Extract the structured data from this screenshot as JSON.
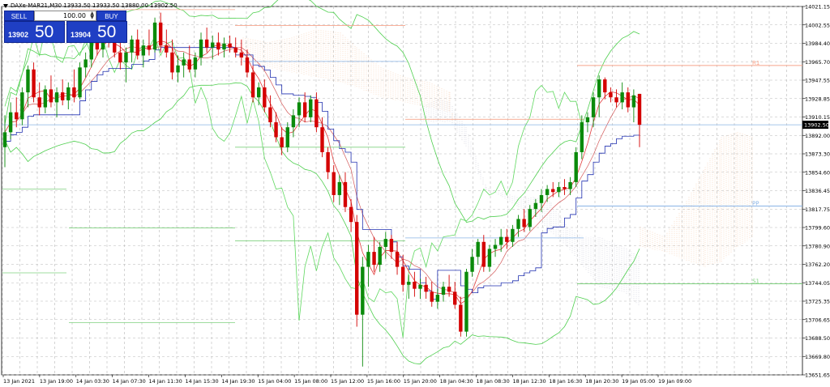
{
  "window": {
    "title": "DAXe-MAR21,M30  13933.50 13933.50 13880.00 13902.50"
  },
  "trade_panel": {
    "sell_label": "SELL",
    "buy_label": "BUY",
    "volume": "100.00",
    "bid_small": "13902",
    "bid_big": "50",
    "ask_small": "13904",
    "ask_big": "50"
  },
  "chart_data": {
    "type": "candlestick",
    "symbol": "DAXe-MAR21",
    "timeframe": "M30",
    "ylim": [
      13651.65,
      14021.15
    ],
    "y_ticks": [
      "14021.15",
      "14002.55",
      "13984.40",
      "13965.70",
      "13947.55",
      "13928.85",
      "13910.15",
      "13892.00",
      "13873.30",
      "13854.60",
      "13836.45",
      "13817.75",
      "13799.60",
      "13780.90",
      "13762.20",
      "13744.05",
      "13725.35",
      "13706.65",
      "13688.50",
      "13669.80",
      "13651.65"
    ],
    "x_ticks": [
      "13 Jan 2021",
      "13 Jan 19:00",
      "14 Jan 03:30",
      "14 Jan 07:30",
      "14 Jan 11:30",
      "14 Jan 15:30",
      "14 Jan 19:30",
      "15 Jan 04:00",
      "15 Jan 08:00",
      "15 Jan 12:00",
      "15 Jan 16:00",
      "15 Jan 20:00",
      "18 Jan 04:30",
      "18 Jan 08:30",
      "18 Jan 12:30",
      "18 Jan 16:30",
      "18 Jan 20:30",
      "19 Jan 05:00",
      "19 Jan 09:00"
    ],
    "current_price": 13902.5,
    "current_price_label": "13902.50",
    "pivots": [
      {
        "name": "R1",
        "value": 13962,
        "color": "#f7a58c"
      },
      {
        "name": "PP",
        "value": 13821,
        "color": "#8ab4e6"
      },
      {
        "name": "S1",
        "value": 13743,
        "color": "#7fd17f"
      }
    ],
    "candles": [
      {
        "o": 13880,
        "h": 13912,
        "l": 13860,
        "c": 13895
      },
      {
        "o": 13895,
        "h": 13925,
        "l": 13888,
        "c": 13915
      },
      {
        "o": 13915,
        "h": 13930,
        "l": 13900,
        "c": 13908
      },
      {
        "o": 13908,
        "h": 13940,
        "l": 13902,
        "c": 13935
      },
      {
        "o": 13935,
        "h": 13962,
        "l": 13920,
        "c": 13958
      },
      {
        "o": 13958,
        "h": 13965,
        "l": 13925,
        "c": 13930
      },
      {
        "o": 13930,
        "h": 13945,
        "l": 13912,
        "c": 13920
      },
      {
        "o": 13920,
        "h": 13942,
        "l": 13914,
        "c": 13938
      },
      {
        "o": 13938,
        "h": 13952,
        "l": 13920,
        "c": 13925
      },
      {
        "o": 13925,
        "h": 13940,
        "l": 13910,
        "c": 13935
      },
      {
        "o": 13935,
        "h": 13948,
        "l": 13922,
        "c": 13927
      },
      {
        "o": 13927,
        "h": 13945,
        "l": 13918,
        "c": 13940
      },
      {
        "o": 13940,
        "h": 13958,
        "l": 13925,
        "c": 13930
      },
      {
        "o": 13930,
        "h": 13965,
        "l": 13928,
        "c": 13960
      },
      {
        "o": 13960,
        "h": 13975,
        "l": 13950,
        "c": 13968
      },
      {
        "o": 13968,
        "h": 13990,
        "l": 13960,
        "c": 13985
      },
      {
        "o": 13985,
        "h": 13995,
        "l": 13972,
        "c": 13978
      },
      {
        "o": 13978,
        "h": 14002,
        "l": 13970,
        "c": 13998
      },
      {
        "o": 13998,
        "h": 14008,
        "l": 13980,
        "c": 13985
      },
      {
        "o": 13985,
        "h": 13998,
        "l": 13970,
        "c": 13975
      },
      {
        "o": 13975,
        "h": 13990,
        "l": 13958,
        "c": 13965
      },
      {
        "o": 13965,
        "h": 13980,
        "l": 13945,
        "c": 13975
      },
      {
        "o": 13975,
        "h": 13992,
        "l": 13965,
        "c": 13988
      },
      {
        "o": 13988,
        "h": 13998,
        "l": 13968,
        "c": 13972
      },
      {
        "o": 13972,
        "h": 13988,
        "l": 13960,
        "c": 13982
      },
      {
        "o": 13982,
        "h": 13998,
        "l": 13972,
        "c": 13978
      },
      {
        "o": 13978,
        "h": 14010,
        "l": 13975,
        "c": 14005
      },
      {
        "o": 14005,
        "h": 14015,
        "l": 13975,
        "c": 13982
      },
      {
        "o": 13982,
        "h": 13998,
        "l": 13970,
        "c": 13975
      },
      {
        "o": 13975,
        "h": 13988,
        "l": 13948,
        "c": 13955
      },
      {
        "o": 13955,
        "h": 13972,
        "l": 13945,
        "c": 13962
      },
      {
        "o": 13962,
        "h": 13975,
        "l": 13950,
        "c": 13968
      },
      {
        "o": 13968,
        "h": 13982,
        "l": 13955,
        "c": 13958
      },
      {
        "o": 13958,
        "h": 13975,
        "l": 13950,
        "c": 13970
      },
      {
        "o": 13970,
        "h": 13995,
        "l": 13962,
        "c": 13988
      },
      {
        "o": 13988,
        "h": 14000,
        "l": 13975,
        "c": 13980
      },
      {
        "o": 13980,
        "h": 13992,
        "l": 13968,
        "c": 13985
      },
      {
        "o": 13985,
        "h": 13995,
        "l": 13972,
        "c": 13978
      },
      {
        "o": 13978,
        "h": 13990,
        "l": 13970,
        "c": 13984
      },
      {
        "o": 13984,
        "h": 13992,
        "l": 13975,
        "c": 13980
      },
      {
        "o": 13980,
        "h": 13990,
        "l": 13970,
        "c": 13975
      },
      {
        "o": 13975,
        "h": 13988,
        "l": 13962,
        "c": 13970
      },
      {
        "o": 13970,
        "h": 13978,
        "l": 13950,
        "c": 13955
      },
      {
        "o": 13955,
        "h": 13962,
        "l": 13925,
        "c": 13930
      },
      {
        "o": 13930,
        "h": 13945,
        "l": 13922,
        "c": 13940
      },
      {
        "o": 13940,
        "h": 13948,
        "l": 13915,
        "c": 13920
      },
      {
        "o": 13920,
        "h": 13932,
        "l": 13900,
        "c": 13905
      },
      {
        "o": 13905,
        "h": 13915,
        "l": 13885,
        "c": 13890
      },
      {
        "o": 13890,
        "h": 13900,
        "l": 13872,
        "c": 13880
      },
      {
        "o": 13880,
        "h": 13905,
        "l": 13875,
        "c": 13900
      },
      {
        "o": 13900,
        "h": 13918,
        "l": 13890,
        "c": 13912
      },
      {
        "o": 13912,
        "h": 13930,
        "l": 13900,
        "c": 13925
      },
      {
        "o": 13925,
        "h": 13935,
        "l": 13905,
        "c": 13910
      },
      {
        "o": 13910,
        "h": 13932,
        "l": 13905,
        "c": 13928
      },
      {
        "o": 13928,
        "h": 13935,
        "l": 13895,
        "c": 13900
      },
      {
        "o": 13900,
        "h": 13910,
        "l": 13870,
        "c": 13875
      },
      {
        "o": 13875,
        "h": 13880,
        "l": 13848,
        "c": 13855
      },
      {
        "o": 13855,
        "h": 13862,
        "l": 13825,
        "c": 13832
      },
      {
        "o": 13832,
        "h": 13852,
        "l": 13822,
        "c": 13845
      },
      {
        "o": 13845,
        "h": 13855,
        "l": 13815,
        "c": 13820
      },
      {
        "o": 13820,
        "h": 13828,
        "l": 13795,
        "c": 13805
      },
      {
        "o": 13805,
        "h": 13812,
        "l": 13700,
        "c": 13712
      },
      {
        "o": 13712,
        "h": 13770,
        "l": 13660,
        "c": 13760
      },
      {
        "o": 13760,
        "h": 13782,
        "l": 13740,
        "c": 13775
      },
      {
        "o": 13775,
        "h": 13790,
        "l": 13755,
        "c": 13762
      },
      {
        "o": 13762,
        "h": 13785,
        "l": 13755,
        "c": 13780
      },
      {
        "o": 13780,
        "h": 13795,
        "l": 13768,
        "c": 13788
      },
      {
        "o": 13788,
        "h": 13792,
        "l": 13768,
        "c": 13775
      },
      {
        "o": 13775,
        "h": 13785,
        "l": 13752,
        "c": 13760
      },
      {
        "o": 13760,
        "h": 13772,
        "l": 13735,
        "c": 13742
      },
      {
        "o": 13742,
        "h": 13752,
        "l": 13728,
        "c": 13745
      },
      {
        "o": 13745,
        "h": 13755,
        "l": 13730,
        "c": 13738
      },
      {
        "o": 13738,
        "h": 13748,
        "l": 13728,
        "c": 13742
      },
      {
        "o": 13742,
        "h": 13750,
        "l": 13728,
        "c": 13735
      },
      {
        "o": 13735,
        "h": 13745,
        "l": 13720,
        "c": 13725
      },
      {
        "o": 13725,
        "h": 13738,
        "l": 13718,
        "c": 13732
      },
      {
        "o": 13732,
        "h": 13745,
        "l": 13725,
        "c": 13740
      },
      {
        "o": 13740,
        "h": 13752,
        "l": 13730,
        "c": 13735
      },
      {
        "o": 13735,
        "h": 13745,
        "l": 13718,
        "c": 13722
      },
      {
        "o": 13722,
        "h": 13730,
        "l": 13690,
        "c": 13695
      },
      {
        "o": 13695,
        "h": 13758,
        "l": 13690,
        "c": 13755
      },
      {
        "o": 13755,
        "h": 13778,
        "l": 13750,
        "c": 13770
      },
      {
        "o": 13770,
        "h": 13788,
        "l": 13762,
        "c": 13785
      },
      {
        "o": 13785,
        "h": 13792,
        "l": 13755,
        "c": 13760
      },
      {
        "o": 13760,
        "h": 13782,
        "l": 13755,
        "c": 13778
      },
      {
        "o": 13778,
        "h": 13788,
        "l": 13770,
        "c": 13782
      },
      {
        "o": 13782,
        "h": 13798,
        "l": 13775,
        "c": 13790
      },
      {
        "o": 13790,
        "h": 13798,
        "l": 13778,
        "c": 13785
      },
      {
        "o": 13785,
        "h": 13802,
        "l": 13780,
        "c": 13798
      },
      {
        "o": 13798,
        "h": 13812,
        "l": 13790,
        "c": 13808
      },
      {
        "o": 13808,
        "h": 13818,
        "l": 13795,
        "c": 13800
      },
      {
        "o": 13800,
        "h": 13822,
        "l": 13796,
        "c": 13818
      },
      {
        "o": 13818,
        "h": 13828,
        "l": 13810,
        "c": 13824
      },
      {
        "o": 13824,
        "h": 13838,
        "l": 13815,
        "c": 13832
      },
      {
        "o": 13832,
        "h": 13842,
        "l": 13825,
        "c": 13838
      },
      {
        "o": 13838,
        "h": 13845,
        "l": 13830,
        "c": 13835
      },
      {
        "o": 13835,
        "h": 13845,
        "l": 13830,
        "c": 13840
      },
      {
        "o": 13840,
        "h": 13848,
        "l": 13832,
        "c": 13838
      },
      {
        "o": 13838,
        "h": 13850,
        "l": 13832,
        "c": 13845
      },
      {
        "o": 13845,
        "h": 13880,
        "l": 13840,
        "c": 13875
      },
      {
        "o": 13875,
        "h": 13912,
        "l": 13868,
        "c": 13905
      },
      {
        "o": 13905,
        "h": 13915,
        "l": 13895,
        "c": 13910
      },
      {
        "o": 13910,
        "h": 13935,
        "l": 13900,
        "c": 13930
      },
      {
        "o": 13930,
        "h": 13952,
        "l": 13910,
        "c": 13948
      },
      {
        "o": 13948,
        "h": 13950,
        "l": 13928,
        "c": 13935
      },
      {
        "o": 13935,
        "h": 13940,
        "l": 13925,
        "c": 13930
      },
      {
        "o": 13930,
        "h": 13938,
        "l": 13920,
        "c": 13925
      },
      {
        "o": 13925,
        "h": 13945,
        "l": 13918,
        "c": 13935
      },
      {
        "o": 13935,
        "h": 13940,
        "l": 13915,
        "c": 13920
      },
      {
        "o": 13920,
        "h": 13938,
        "l": 13905,
        "c": 13932
      },
      {
        "o": 13933.5,
        "h": 13933.5,
        "l": 13880,
        "c": 13902.5
      }
    ]
  }
}
